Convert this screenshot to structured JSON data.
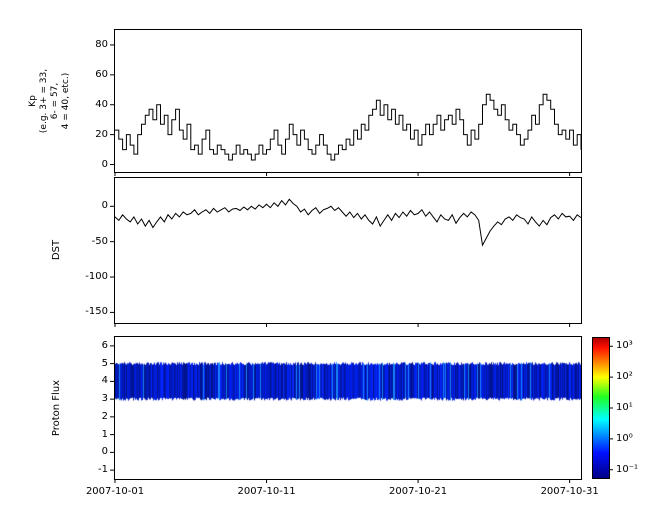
{
  "figure": {
    "background_color": "#ffffff",
    "axis_color": "#000000",
    "series_color": "#000000"
  },
  "x_axis": {
    "tick_labels": [
      "2007-10-01",
      "2007-10-11",
      "2007-10-21",
      "2007-10-31"
    ],
    "tick_days": [
      0,
      10,
      20,
      30
    ],
    "range_days": [
      0,
      30.75
    ]
  },
  "chart_data": [
    {
      "type": "line",
      "name": "kp-index",
      "ylabel": "Kp (e.g. 3+ = 33, 6- = 57, 4 = 40, etc.)",
      "ylabel_lines": [
        "Kp",
        "(e.g. 3+ = 33,",
        "6- = 57,",
        "4 = 40, etc.)"
      ],
      "ylim": [
        -5,
        90
      ],
      "yticks": [
        0,
        20,
        40,
        60,
        80
      ],
      "x_start_day": 0,
      "x_step_days": 0.25,
      "line_style": "step",
      "values": [
        23,
        17,
        10,
        20,
        13,
        7,
        20,
        27,
        33,
        37,
        30,
        40,
        27,
        33,
        20,
        30,
        37,
        23,
        17,
        27,
        10,
        13,
        7,
        17,
        23,
        10,
        7,
        13,
        10,
        7,
        3,
        7,
        13,
        7,
        10,
        7,
        3,
        7,
        13,
        7,
        10,
        17,
        23,
        13,
        7,
        17,
        27,
        20,
        13,
        23,
        17,
        10,
        7,
        13,
        20,
        13,
        7,
        3,
        7,
        13,
        10,
        17,
        13,
        23,
        17,
        27,
        23,
        33,
        37,
        43,
        33,
        40,
        30,
        37,
        27,
        33,
        23,
        27,
        17,
        23,
        13,
        20,
        27,
        20,
        27,
        33,
        23,
        30,
        33,
        27,
        37,
        30,
        20,
        13,
        23,
        17,
        27,
        40,
        47,
        43,
        37,
        33,
        40,
        30,
        23,
        27,
        20,
        13,
        17,
        23,
        33,
        27,
        40,
        47,
        43,
        37,
        27,
        20,
        23,
        17,
        23,
        13,
        20,
        10
      ]
    },
    {
      "type": "line",
      "name": "dst-index",
      "ylabel": "DST",
      "ylim": [
        -165,
        40
      ],
      "yticks": [
        0,
        -50,
        -100,
        -150
      ],
      "x_start_day": 0,
      "x_step_days": 0.25,
      "line_style": "linear",
      "values": [
        -15,
        -20,
        -12,
        -18,
        -22,
        -15,
        -25,
        -18,
        -28,
        -20,
        -30,
        -22,
        -15,
        -22,
        -12,
        -18,
        -10,
        -15,
        -8,
        -12,
        -10,
        -5,
        -12,
        -8,
        -5,
        -10,
        -3,
        -8,
        -5,
        -2,
        -8,
        -4,
        -3,
        -6,
        -1,
        -5,
        0,
        -4,
        2,
        -2,
        3,
        -2,
        5,
        0,
        8,
        2,
        10,
        4,
        0,
        -8,
        -4,
        -12,
        -6,
        -2,
        -10,
        -5,
        -3,
        0,
        -6,
        -2,
        -8,
        -14,
        -8,
        -16,
        -10,
        -18,
        -12,
        -20,
        -25,
        -15,
        -28,
        -20,
        -12,
        -20,
        -10,
        -16,
        -8,
        -14,
        -6,
        -12,
        -10,
        -5,
        -14,
        -8,
        -15,
        -22,
        -12,
        -18,
        -20,
        -12,
        -24,
        -16,
        -10,
        -15,
        -8,
        -12,
        -20,
        -55,
        -45,
        -35,
        -28,
        -22,
        -26,
        -18,
        -15,
        -20,
        -12,
        -16,
        -18,
        -25,
        -15,
        -22,
        -28,
        -20,
        -26,
        -16,
        -12,
        -18,
        -10,
        -15,
        -14,
        -20,
        -12,
        -16
      ]
    },
    {
      "type": "heatmap",
      "name": "proton-flux-spectrogram",
      "ylabel": "Proton Flux",
      "ylim": [
        -1.5,
        6.5
      ],
      "yticks": [
        -1,
        0,
        1,
        2,
        3,
        4,
        5,
        6
      ],
      "band": {
        "y_from": 3,
        "y_to": 5,
        "flux_range_approx": [
          0.1,
          1.0
        ],
        "description": "continuous blue band of low proton flux with dense vertical striations spanning the full time range"
      },
      "colormap": "jet"
    }
  ],
  "colorbar": {
    "scale": "log",
    "tick_labels": [
      "10³",
      "10²",
      "10¹",
      "10⁰",
      "10⁻¹"
    ],
    "tick_exponents": [
      3,
      2,
      1,
      0,
      -1
    ],
    "log_range": [
      -1.3,
      3.3
    ]
  }
}
